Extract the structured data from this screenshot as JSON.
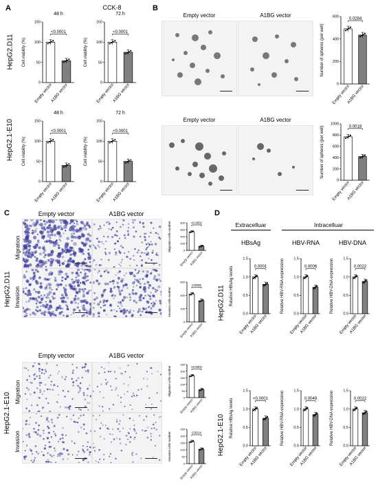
{
  "panels": {
    "A": {
      "letter": "A",
      "title": "CCK-8",
      "row_labels": [
        "HepG2.D11",
        "HepG2.1-E10"
      ]
    },
    "B": {
      "letter": "B",
      "image_labels": [
        "Empty vector",
        "A1BG vector"
      ]
    },
    "C": {
      "letter": "C",
      "column_labels": [
        "Empty vector",
        "A1BG vector"
      ],
      "row_labels": [
        "HepG2.D11",
        "HepG2.1-E10"
      ],
      "sub_labels": [
        "Migration",
        "Invasion"
      ]
    },
    "D": {
      "letter": "D",
      "group_labels": [
        "Extracelluar",
        "Intracelluar"
      ],
      "column_labels": [
        "HBsAg",
        "HBV-RNA",
        "HBV-DNA"
      ],
      "row_labels": [
        "HepG2.D11",
        "HepG2.1-E10"
      ]
    }
  },
  "colors": {
    "empty_bar": "#ffffff",
    "a1bg_bar": "#808080",
    "stain": "#3f3f9e",
    "sphere": "#505050"
  },
  "chart_data": [
    {
      "id": "A1",
      "type": "bar",
      "title": "48 h",
      "ylabel": "Cell viability (%)",
      "categories": [
        "Empty vector",
        "A1BG vector"
      ],
      "values": [
        100,
        54
      ],
      "ylim": [
        0,
        150
      ],
      "yticks": [
        0,
        50,
        100,
        150
      ],
      "pvalue": "<0.0001"
    },
    {
      "id": "A2",
      "type": "bar",
      "title": "72 h",
      "ylabel": "Cell viability (%)",
      "categories": [
        "Empty vector",
        "A1BG vector"
      ],
      "values": [
        100,
        75
      ],
      "ylim": [
        0,
        150
      ],
      "yticks": [
        0,
        50,
        100,
        150
      ],
      "pvalue": "<0.0001"
    },
    {
      "id": "A3",
      "type": "bar",
      "title": "48 h",
      "ylabel": "Cell viability (%)",
      "categories": [
        "Empty vector",
        "A1BG vector"
      ],
      "values": [
        100,
        40
      ],
      "ylim": [
        0,
        150
      ],
      "yticks": [
        0,
        50,
        100,
        150
      ],
      "pvalue": "<0.0001"
    },
    {
      "id": "A4",
      "type": "bar",
      "title": "72 h",
      "ylabel": "Cell viability (%)",
      "categories": [
        "Empty vector",
        "A1BG vector"
      ],
      "values": [
        100,
        50
      ],
      "ylim": [
        0,
        150
      ],
      "yticks": [
        0,
        50,
        100,
        150
      ],
      "pvalue": "<0.0001"
    },
    {
      "id": "B1",
      "type": "bar",
      "ylabel": "Number of spheres (per well)",
      "categories": [
        "Empty vector",
        "A1BG vector"
      ],
      "values": [
        490,
        435
      ],
      "ylim": [
        0,
        600
      ],
      "yticks": [
        0,
        200,
        400,
        600
      ],
      "pvalue": "0.0284"
    },
    {
      "id": "B2",
      "type": "bar",
      "ylabel": "Number of spheres (per well)",
      "categories": [
        "Empty vector",
        "A1BG vector"
      ],
      "values": [
        770,
        420
      ],
      "ylim": [
        0,
        1000
      ],
      "yticks": [
        0,
        200,
        400,
        600,
        800,
        1000
      ],
      "pvalue": "0.0018"
    },
    {
      "id": "C1",
      "type": "bar",
      "ylabel": "Migration cells number",
      "categories": [
        "Empty vector",
        "A1BG vector"
      ],
      "values": [
        540,
        120
      ],
      "ylim": [
        0,
        800
      ],
      "yticks": [
        0,
        200,
        400,
        600,
        800
      ],
      "pvalue": "<0.0001"
    },
    {
      "id": "C2",
      "type": "bar",
      "ylabel": "Invasion cells number",
      "categories": [
        "Empty vector",
        "A1BG vector"
      ],
      "values": [
        420,
        320
      ],
      "ylim": [
        0,
        600
      ],
      "yticks": [
        0,
        200,
        400,
        600
      ],
      "pvalue": "0.0006"
    },
    {
      "id": "C3",
      "type": "bar",
      "ylabel": "Migration cells number",
      "categories": [
        "Empty vector",
        "A1BG vector"
      ],
      "values": [
        165,
        60
      ],
      "ylim": [
        0,
        250
      ],
      "yticks": [
        0,
        50,
        100,
        150,
        200,
        250
      ],
      "pvalue": "<0.0001"
    },
    {
      "id": "C4",
      "type": "bar",
      "ylabel": "Invasion cells number",
      "categories": [
        "Empty vector",
        "A1BG vector"
      ],
      "values": [
        160,
        105
      ],
      "ylim": [
        0,
        250
      ],
      "yticks": [
        0,
        50,
        100,
        150,
        200,
        250
      ],
      "pvalue": "0.0014"
    },
    {
      "id": "D1",
      "type": "bar",
      "ylabel": "Relative HBsAg levels",
      "categories": [
        "Empty vector",
        "A1BG vector"
      ],
      "values": [
        1.0,
        0.8
      ],
      "ylim": [
        0,
        1.5
      ],
      "yticks": [
        0.0,
        0.5,
        1.0,
        1.5
      ],
      "pvalue": "0.0001"
    },
    {
      "id": "D2",
      "type": "bar",
      "ylabel": "Relative HBV-RNA expression",
      "categories": [
        "Empty vector",
        "A1BG vector"
      ],
      "values": [
        1.0,
        0.72
      ],
      "ylim": [
        0,
        1.5
      ],
      "yticks": [
        0.0,
        0.5,
        1.0,
        1.5
      ],
      "pvalue": "0.0006"
    },
    {
      "id": "D3",
      "type": "bar",
      "ylabel": "Relative HBV-DNA expression",
      "categories": [
        "Empty vector",
        "A1BG vector"
      ],
      "values": [
        1.0,
        0.88
      ],
      "ylim": [
        0,
        1.5
      ],
      "yticks": [
        0.0,
        0.5,
        1.0,
        1.5
      ],
      "pvalue": "0.0022"
    },
    {
      "id": "D4",
      "type": "bar",
      "ylabel": "Relative HBsAg levels",
      "categories": [
        "Empty vector",
        "A1BG vector"
      ],
      "values": [
        1.0,
        0.75
      ],
      "ylim": [
        0,
        1.5
      ],
      "yticks": [
        0.0,
        0.5,
        1.0,
        1.5
      ],
      "pvalue": "<0.0001"
    },
    {
      "id": "D5",
      "type": "bar",
      "ylabel": "Relative HBV-RNA expression",
      "categories": [
        "Empty vector",
        "A1BG vector"
      ],
      "values": [
        1.0,
        0.85
      ],
      "ylim": [
        0,
        1.5
      ],
      "yticks": [
        0.0,
        0.5,
        1.0,
        1.5
      ],
      "pvalue": "0.0049"
    },
    {
      "id": "D6",
      "type": "bar",
      "ylabel": "Relative HBV-DNA expression",
      "categories": [
        "Empty vector",
        "A1BG vector"
      ],
      "values": [
        1.0,
        0.9
      ],
      "ylim": [
        0,
        1.5
      ],
      "yticks": [
        0.0,
        0.5,
        1.0,
        1.5
      ],
      "pvalue": "0.0022"
    }
  ]
}
